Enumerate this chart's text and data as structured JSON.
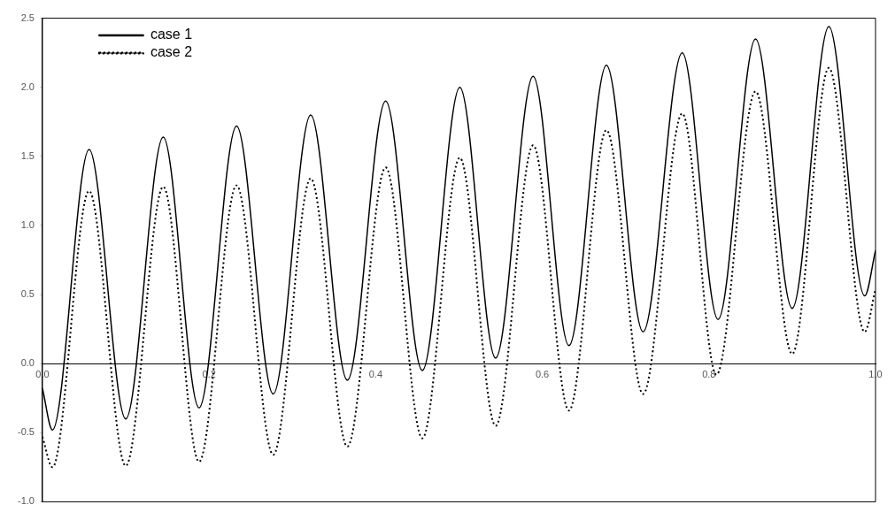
{
  "chart_data": {
    "type": "line",
    "xlim": [
      0,
      1
    ],
    "ylim": [
      -1,
      2.5
    ],
    "xticks": [
      {
        "value": 0,
        "label": "0.0"
      },
      0.2,
      0.4,
      0.6,
      0.8,
      {
        "value": 1,
        "label": "1.0"
      }
    ],
    "yticks": [
      {
        "value": -1,
        "label": "-1.0"
      },
      -0.5,
      {
        "value": 0,
        "label": "0.0"
      },
      0.5,
      {
        "value": 1,
        "label": "1.0"
      },
      1.5,
      {
        "value": 2,
        "label": "2.0"
      },
      2.5
    ],
    "grid": false,
    "legend": "top left",
    "marker": "none",
    "series": [
      {
        "name": "case 1",
        "color": "#000000",
        "line_style": "solid",
        "x": [
          0,
          0.012,
          0.056,
          0.1,
          0.145,
          0.188,
          0.233,
          0.277,
          0.322,
          0.366,
          0.412,
          0.456,
          0.501,
          0.544,
          0.589,
          0.632,
          0.677,
          0.721,
          0.768,
          0.811,
          0.856,
          0.9,
          0.944,
          0.987,
          1
        ],
        "values": [
          -0.18,
          -0.48,
          1.55,
          -0.4,
          1.64,
          -0.32,
          1.72,
          -0.22,
          1.8,
          -0.12,
          1.9,
          -0.05,
          2.0,
          0.04,
          2.08,
          0.13,
          2.16,
          0.23,
          2.25,
          0.32,
          2.35,
          0.4,
          2.44,
          0.49,
          0.82
        ]
      },
      {
        "name": "case 2",
        "color": "#000000",
        "line_style": "dotted",
        "x": [
          0,
          0.012,
          0.056,
          0.1,
          0.145,
          0.188,
          0.233,
          0.277,
          0.322,
          0.366,
          0.412,
          0.456,
          0.501,
          0.544,
          0.589,
          0.632,
          0.677,
          0.721,
          0.768,
          0.809,
          0.856,
          0.9,
          0.944,
          0.987,
          1
        ],
        "values": [
          -0.53,
          -0.75,
          1.25,
          -0.74,
          1.28,
          -0.71,
          1.29,
          -0.66,
          1.34,
          -0.6,
          1.42,
          -0.54,
          1.49,
          -0.45,
          1.58,
          -0.34,
          1.69,
          -0.22,
          1.81,
          -0.08,
          1.97,
          0.07,
          2.14,
          0.23,
          0.54
        ]
      }
    ]
  }
}
